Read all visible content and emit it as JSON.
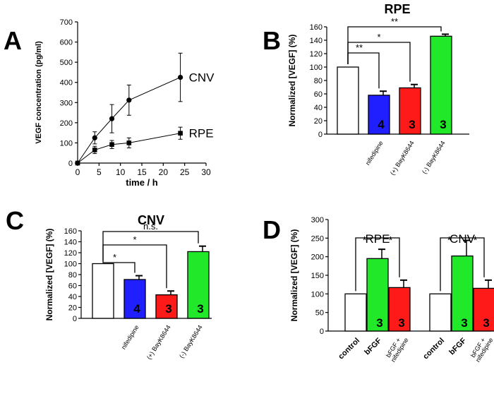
{
  "colors": {
    "white": "#ffffff",
    "blue": "#1f1fff",
    "red": "#ff1a1a",
    "green": "#22e82a",
    "ink": "#000000"
  },
  "chart_data": [
    {
      "panel": "A",
      "type": "line",
      "ylabel": "VEGF concentration (pg/ml)",
      "xlabel": "time / h",
      "xlim": [
        0,
        30
      ],
      "ylim": [
        0,
        700
      ],
      "xticks": [
        0,
        5,
        10,
        15,
        20,
        25,
        30
      ],
      "yticks": [
        0,
        100,
        200,
        300,
        400,
        500,
        600,
        700
      ],
      "series": [
        {
          "name": "CNV",
          "marker": "circle",
          "x": [
            0,
            4,
            8,
            12,
            24
          ],
          "y": [
            0,
            125,
            220,
            312,
            425
          ],
          "err": [
            5,
            30,
            70,
            75,
            120
          ]
        },
        {
          "name": "RPE",
          "marker": "square",
          "x": [
            0,
            4,
            8,
            12,
            24
          ],
          "y": [
            0,
            65,
            92,
            100,
            148
          ],
          "err": [
            5,
            18,
            20,
            25,
            30
          ]
        }
      ]
    },
    {
      "panel": "B",
      "type": "bar",
      "title": "RPE",
      "ylabel": "Normalized [VEGF] (%)",
      "ylim": [
        0,
        160
      ],
      "yticks": [
        0,
        20,
        40,
        60,
        80,
        100,
        120,
        140,
        160
      ],
      "categories": [
        "",
        "nifedipine",
        "(+) BayK8644",
        "(-) BayK8644"
      ],
      "values": [
        100,
        58,
        69,
        146
      ],
      "errors": [
        0,
        6,
        5,
        3
      ],
      "colors": [
        "white",
        "blue",
        "red",
        "green"
      ],
      "n_labels": [
        "",
        "4",
        "3",
        "3"
      ],
      "significance": [
        {
          "from": 0,
          "to": 1,
          "label": "**"
        },
        {
          "from": 0,
          "to": 2,
          "label": "*"
        },
        {
          "from": 0,
          "to": 3,
          "label": "**"
        }
      ]
    },
    {
      "panel": "C",
      "type": "bar",
      "title": "CNV",
      "ylabel": "Normalized [VEGF] (%)",
      "ylim": [
        0,
        160
      ],
      "yticks": [
        0,
        20,
        40,
        60,
        80,
        100,
        120,
        140,
        160
      ],
      "categories": [
        "",
        "nifedipine",
        "(+) BayK8644",
        "(-) BayK8644"
      ],
      "values": [
        100,
        71,
        43,
        122
      ],
      "errors": [
        0,
        7,
        7,
        10
      ],
      "colors": [
        "white",
        "blue",
        "red",
        "green"
      ],
      "n_labels": [
        "",
        "4",
        "3",
        "3"
      ],
      "significance": [
        {
          "from": 0,
          "to": 1,
          "label": "*"
        },
        {
          "from": 0,
          "to": 2,
          "label": "*"
        },
        {
          "from": 0,
          "to": 3,
          "label": "n.s."
        }
      ]
    },
    {
      "panel": "D",
      "type": "bar",
      "ylabel": "Normalized [VEGF] (%)",
      "ylim": [
        0,
        300
      ],
      "yticks": [
        0,
        50,
        100,
        150,
        200,
        250,
        300
      ],
      "groups": [
        {
          "name": "RPE",
          "categories": [
            "control",
            "bFGF",
            "bFGF + nifedipine"
          ],
          "values": [
            100,
            195,
            117
          ],
          "errors": [
            0,
            25,
            20
          ],
          "colors": [
            "white",
            "green",
            "red"
          ],
          "n_labels": [
            "",
            "3",
            "3"
          ]
        },
        {
          "name": "CNV",
          "categories": [
            "control",
            "bFGF",
            "bFGF + nifedipine"
          ],
          "values": [
            100,
            202,
            115
          ],
          "errors": [
            0,
            42,
            22
          ],
          "colors": [
            "white",
            "green",
            "red"
          ],
          "n_labels": [
            "",
            "3",
            "3"
          ]
        }
      ],
      "significance_label": "*"
    }
  ],
  "panel_letters": [
    "A",
    "B",
    "C",
    "D"
  ]
}
